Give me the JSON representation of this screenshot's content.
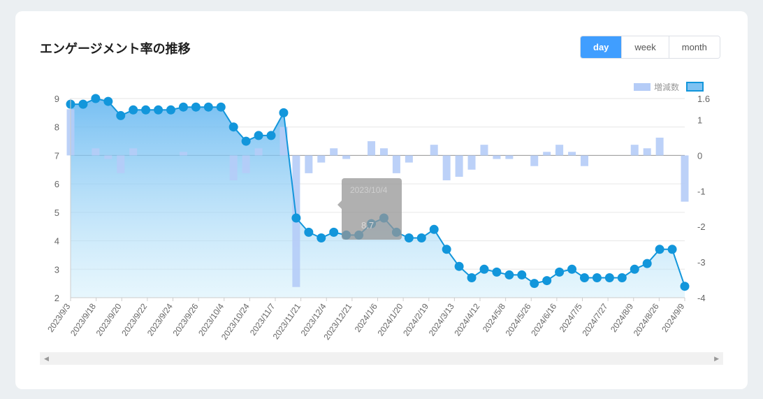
{
  "header": {
    "title": "エンゲージメント率の推移",
    "tabs": [
      {
        "label": "day",
        "active": true
      },
      {
        "label": "week",
        "active": false
      },
      {
        "label": "month",
        "active": false
      }
    ]
  },
  "tooltip": {
    "date": "2023/10/4",
    "value": "8.7"
  },
  "colors": {
    "line": "#1296db",
    "bar": "#b5ccf7",
    "accent": "#409eff"
  },
  "chart_data": {
    "type": "line",
    "legend": [
      "増減数",
      ""
    ],
    "legend_position": "top-right",
    "grid": true,
    "x_tick_labels": [
      "2023/9/3",
      "2023/9/18",
      "2023/9/20",
      "2023/9/22",
      "2023/9/24",
      "2023/9/26",
      "2023/10/4",
      "2023/10/24",
      "2023/11/7",
      "2023/11/21",
      "2023/12/4",
      "2023/12/21",
      "2024/1/6",
      "2024/1/20",
      "2024/2/19",
      "2024/3/13",
      "2024/4/12",
      "2024/5/8",
      "2024/5/26",
      "2024/6/16",
      "2024/7/5",
      "2024/7/27",
      "2024/8/9",
      "2024/8/26",
      "2024/9/9"
    ],
    "y_left": {
      "min": 2,
      "max": 9,
      "ticks": [
        2,
        3,
        4,
        5,
        6,
        7,
        8,
        9
      ]
    },
    "y_right": {
      "min": -4,
      "max": 1.6,
      "ticks": [
        -4,
        -3,
        -2,
        -1,
        0,
        1,
        1.6
      ]
    },
    "series": [
      {
        "kind": "line",
        "axis": "left",
        "values": [
          8.8,
          8.8,
          9.0,
          8.9,
          8.4,
          8.6,
          8.6,
          8.6,
          8.6,
          8.7,
          8.7,
          8.7,
          8.7,
          8.0,
          7.5,
          7.7,
          7.7,
          8.5,
          4.8,
          4.3,
          4.1,
          4.3,
          4.2,
          4.2,
          4.6,
          4.8,
          4.3,
          4.1,
          4.1,
          4.4,
          3.7,
          3.1,
          2.7,
          3.0,
          2.9,
          2.8,
          2.8,
          2.5,
          2.6,
          2.9,
          3.0,
          2.7,
          2.7,
          2.7,
          2.7,
          3.0,
          3.2,
          3.7,
          3.7,
          2.4
        ]
      },
      {
        "kind": "bar",
        "axis": "right",
        "values": [
          1.3,
          0,
          0.2,
          -0.1,
          -0.5,
          0.2,
          0,
          0,
          0,
          0.1,
          0,
          0,
          0,
          -0.7,
          -0.5,
          0.2,
          0,
          0.8,
          -3.7,
          -0.5,
          -0.2,
          0.2,
          -0.1,
          0,
          0.4,
          0.2,
          -0.5,
          -0.2,
          0,
          0.3,
          -0.7,
          -0.6,
          -0.4,
          0.3,
          -0.1,
          -0.1,
          0,
          -0.3,
          0.1,
          0.3,
          0.1,
          -0.3,
          0,
          0,
          0,
          0.3,
          0.2,
          0.5,
          0,
          -1.3
        ]
      }
    ]
  }
}
